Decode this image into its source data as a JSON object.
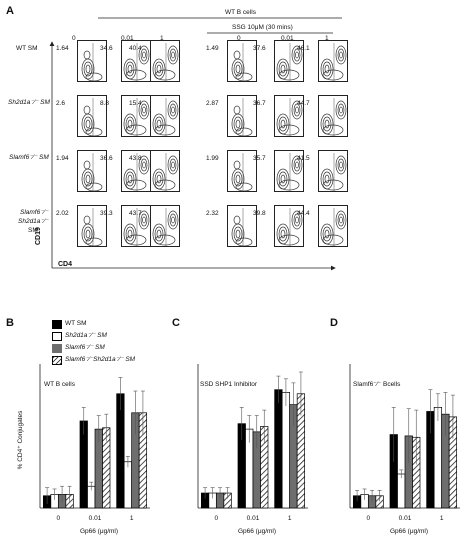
{
  "panelA": {
    "letter": "A",
    "header_wt": "WT B cells",
    "header_ssg": "SSG 10μM (30 mins)",
    "doses": [
      "0",
      "0.01",
      "1",
      "0",
      "0.01",
      "1"
    ],
    "rows": [
      {
        "label_lines": [
          "WT SM"
        ],
        "values": [
          "1.64",
          "34.6",
          "40.4",
          "1.49",
          "37.6",
          "46.1"
        ]
      },
      {
        "label_lines": [
          "Sh2d1a⁻⁄⁻ SM"
        ],
        "values": [
          "2.6",
          "8.8",
          "15.4",
          "2.87",
          "36.7",
          "44.7"
        ]
      },
      {
        "label_lines": [
          "Slamf6⁻⁄⁻ SM"
        ],
        "values": [
          "1.94",
          "36.6",
          "43.8",
          "1.99",
          "35.7",
          "41.5"
        ]
      },
      {
        "label_lines": [
          "Slamf6⁻⁄⁻",
          "Sh2d1a⁻⁄⁻",
          "SM"
        ],
        "values": [
          "2.02",
          "39.3",
          "43.7",
          "2.32",
          "39.8",
          "44.4"
        ]
      }
    ],
    "y_axis_label": "CD19",
    "x_axis_label": "CD4"
  },
  "legend": {
    "items": [
      {
        "label": "WT SM",
        "fill": "black"
      },
      {
        "label": "Sh2d1a⁻⁄⁻ SM",
        "fill": "white"
      },
      {
        "label": "Slamf6⁻⁄⁻ SM",
        "fill": "gray"
      },
      {
        "label": "Slamf6⁻⁄⁻Sh2d1a⁻⁄⁻ SM",
        "fill": "hatch"
      }
    ]
  },
  "colors": {
    "black": "#000000",
    "white": "#ffffff",
    "gray": "#6e6e6e",
    "hatch_line": "#222222"
  },
  "chart_data": [
    {
      "panel": "B",
      "type": "bar",
      "title": "WT B cells",
      "xlabel": "Gp66 (μg/ml)",
      "ylabel": "% CD4⁺ Conjugates",
      "ylim": [
        0,
        50
      ],
      "categories": [
        "0",
        "0.01",
        "1"
      ],
      "series": [
        {
          "name": "WT SM",
          "values": [
            4.5,
            32,
            42
          ],
          "errors": [
            3,
            5,
            6
          ]
        },
        {
          "name": "Sh2d1a⁻⁄⁻ SM",
          "values": [
            5,
            8,
            17
          ],
          "errors": [
            2,
            1.5,
            2
          ]
        },
        {
          "name": "Slamf6⁻⁄⁻ SM",
          "values": [
            5,
            29,
            35
          ],
          "errors": [
            3,
            5,
            8
          ]
        },
        {
          "name": "Slamf6⁻⁄⁻Sh2d1a⁻⁄⁻ SM",
          "values": [
            5,
            29.5,
            35
          ],
          "errors": [
            3,
            5,
            8
          ]
        }
      ]
    },
    {
      "panel": "C",
      "type": "bar",
      "title": "SSD SHP1 Inhibitor",
      "xlabel": "Gp66 (μg/ml)",
      "ylabel": "",
      "ylim": [
        0,
        50
      ],
      "categories": [
        "0",
        "0.01",
        "1"
      ],
      "series": [
        {
          "name": "WT SM",
          "values": [
            5.5,
            31,
            43.5
          ],
          "errors": [
            2,
            6,
            5
          ]
        },
        {
          "name": "Sh2d1a⁻⁄⁻ SM",
          "values": [
            5.5,
            29,
            42.5
          ],
          "errors": [
            2,
            5,
            5
          ]
        },
        {
          "name": "Slamf6⁻⁄⁻ SM",
          "values": [
            5.5,
            28,
            38
          ],
          "errors": [
            2,
            6,
            8
          ]
        },
        {
          "name": "Slamf6⁻⁄⁻Sh2d1a⁻⁄⁻ SM",
          "values": [
            5.5,
            30,
            42
          ],
          "errors": [
            2,
            6,
            8
          ]
        }
      ]
    },
    {
      "panel": "D",
      "type": "bar",
      "title": "Slamf6⁻⁄⁻ Bcells",
      "xlabel": "Gp66 (μg/ml)",
      "ylabel": "",
      "ylim": [
        0,
        50
      ],
      "categories": [
        "0",
        "0.01",
        "1"
      ],
      "series": [
        {
          "name": "WT SM",
          "values": [
            4.5,
            27,
            35.5
          ],
          "errors": [
            2,
            10,
            8
          ]
        },
        {
          "name": "Sh2d1a⁻⁄⁻ SM",
          "values": [
            5,
            12.5,
            37
          ],
          "errors": [
            2,
            1.5,
            5
          ]
        },
        {
          "name": "Slamf6⁻⁄⁻ SM",
          "values": [
            4.5,
            26.5,
            34.5
          ],
          "errors": [
            2,
            10,
            8
          ]
        },
        {
          "name": "Slamf6⁻⁄⁻Sh2d1a⁻⁄⁻ SM",
          "values": [
            4.5,
            26,
            33.5
          ],
          "errors": [
            2,
            10,
            8
          ]
        }
      ]
    }
  ],
  "panel_letters": [
    "B",
    "C",
    "D"
  ]
}
